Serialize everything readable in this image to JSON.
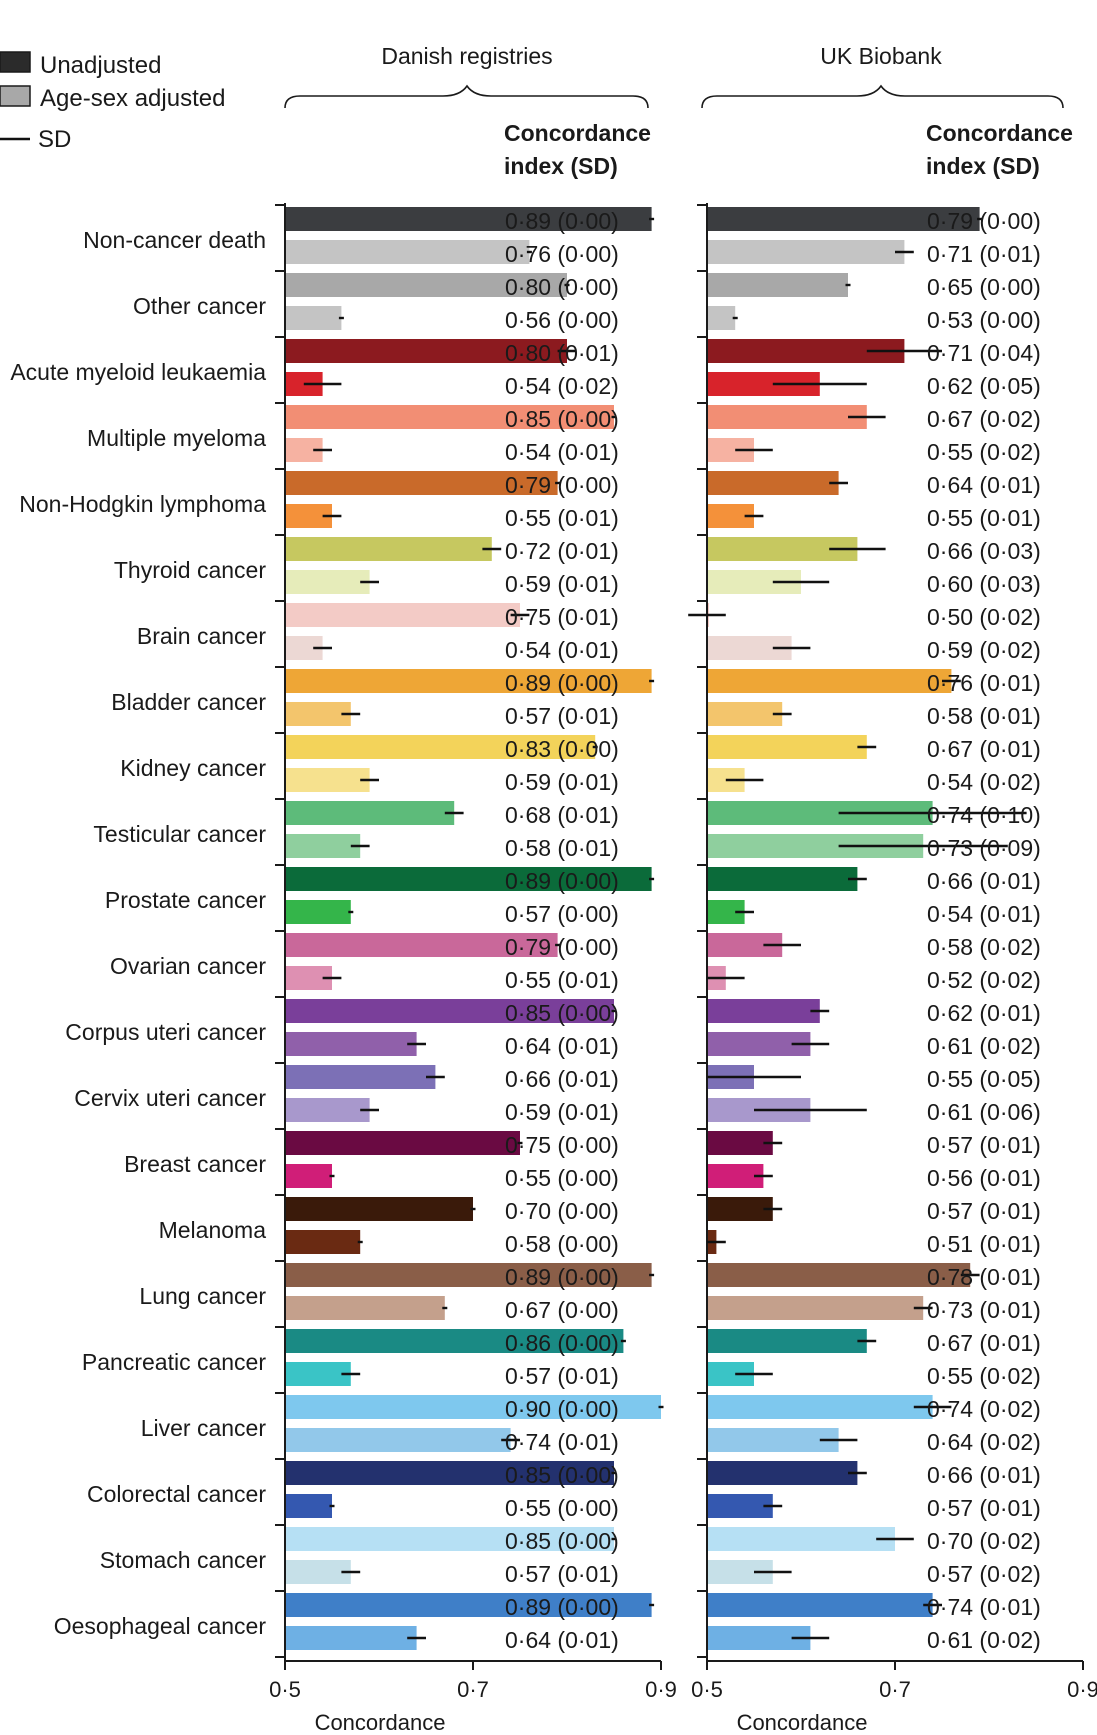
{
  "chart_data": {
    "type": "bar",
    "orientation": "horizontal",
    "legend": [
      {
        "label": "Unadjusted",
        "kind": "swatch",
        "color": "#2b2b2b"
      },
      {
        "label": "Age-sex adjusted",
        "kind": "swatch",
        "color": "#a8a8a8"
      },
      {
        "label": "SD",
        "kind": "line",
        "color": "#111111"
      }
    ],
    "categories": [
      "Non-cancer death",
      "Other cancer",
      "Acute myeloid leukaemia",
      "Multiple myeloma",
      "Non-Hodgkin lymphoma",
      "Thyroid cancer",
      "Brain cancer",
      "Bladder cancer",
      "Kidney cancer",
      "Testicular cancer",
      "Prostate cancer",
      "Ovarian cancer",
      "Corpus uteri cancer",
      "Cervix uteri cancer",
      "Breast cancer",
      "Melanoma",
      "Lung cancer",
      "Pancreatic cancer",
      "Liver cancer",
      "Colorectal cancer",
      "Stomach cancer",
      "Oesophageal cancer"
    ],
    "colors": {
      "unadjusted": [
        "#3b3d40",
        "#a8a8a8",
        "#8c1a1f",
        "#f28e74",
        "#c96a2a",
        "#c6c860",
        "#f3cbc6",
        "#eea636",
        "#f3d35a",
        "#5dbb7a",
        "#0b6b3a",
        "#c9689a",
        "#7a3f9a",
        "#7c70b6",
        "#6a0a42",
        "#3a1a0a",
        "#8a5e48",
        "#1a8a84",
        "#7ec8ee",
        "#23316e",
        "#b6e0f4",
        "#3f7fc8"
      ],
      "adjusted": [
        "#c4c4c4",
        "#c4c4c4",
        "#d8232b",
        "#f6b2a2",
        "#f4913a",
        "#e6ecba",
        "#ecd8d4",
        "#f3c56c",
        "#f6e18e",
        "#8fcf9e",
        "#34b54a",
        "#de90b2",
        "#9060aa",
        "#a898cc",
        "#d01e78",
        "#6a2a12",
        "#c4a08c",
        "#3ac4c6",
        "#92c8ea",
        "#3458b0",
        "#c6e0e8",
        "#6eb0e4"
      ]
    },
    "xlim": [
      0.5,
      0.9
    ],
    "xticks": [
      "0·5",
      "0·7",
      "0·9"
    ],
    "xtick_values": [
      0.5,
      0.7,
      0.9
    ],
    "xlabel": "Concordance",
    "column_header": [
      "Concordance",
      "index (SD)"
    ],
    "panels": [
      {
        "title": "Danish registries",
        "series": [
          {
            "name": "Unadjusted",
            "values": [
              0.89,
              0.8,
              0.8,
              0.85,
              0.79,
              0.72,
              0.75,
              0.89,
              0.83,
              0.68,
              0.89,
              0.79,
              0.85,
              0.66,
              0.75,
              0.7,
              0.89,
              0.86,
              0.9,
              0.85,
              0.85,
              0.89
            ],
            "sd": [
              0.0,
              0.0,
              0.01,
              0.0,
              0.0,
              0.01,
              0.01,
              0.0,
              0.0,
              0.01,
              0.0,
              0.0,
              0.0,
              0.01,
              0.0,
              0.0,
              0.0,
              0.0,
              0.0,
              0.0,
              0.0,
              0.0
            ],
            "labels": [
              "0·89 (0·00)",
              "0·80 (0·00)",
              "0·80 (0·01)",
              "0·85 (0·00)",
              "0·79 (0·00)",
              "0·72 (0·01)",
              "0·75 (0·01)",
              "0·89 (0·00)",
              "0·83 (0·00)",
              "0·68 (0·01)",
              "0·89 (0·00)",
              "0·79 (0·00)",
              "0·85 (0·00)",
              "0·66 (0·01)",
              "0·75 (0·00)",
              "0·70 (0·00)",
              "0·89 (0·00)",
              "0·86 (0·00)",
              "0·90 (0·00)",
              "0·85 (0·00)",
              "0·85 (0·00)",
              "0·89 (0·00)"
            ]
          },
          {
            "name": "Age-sex adjusted",
            "values": [
              0.76,
              0.56,
              0.54,
              0.54,
              0.55,
              0.59,
              0.54,
              0.57,
              0.59,
              0.58,
              0.57,
              0.55,
              0.64,
              0.59,
              0.55,
              0.58,
              0.67,
              0.57,
              0.74,
              0.55,
              0.57,
              0.64
            ],
            "sd": [
              0.0,
              0.0,
              0.02,
              0.01,
              0.01,
              0.01,
              0.01,
              0.01,
              0.01,
              0.01,
              0.0,
              0.01,
              0.01,
              0.01,
              0.0,
              0.0,
              0.0,
              0.01,
              0.01,
              0.0,
              0.01,
              0.01
            ],
            "labels": [
              "0·76 (0·00)",
              "0·56 (0·00)",
              "0·54 (0·02)",
              "0·54 (0·01)",
              "0·55 (0·01)",
              "0·59 (0·01)",
              "0·54 (0·01)",
              "0·57 (0·01)",
              "0·59 (0·01)",
              "0·58 (0·01)",
              "0·57 (0·00)",
              "0·55 (0·01)",
              "0·64 (0·01)",
              "0·59 (0·01)",
              "0·55 (0·00)",
              "0·58 (0·00)",
              "0·67 (0·00)",
              "0·57 (0·01)",
              "0·74 (0·01)",
              "0·55 (0·00)",
              "0·57 (0·01)",
              "0·64 (0·01)"
            ]
          }
        ]
      },
      {
        "title": "UK Biobank",
        "series": [
          {
            "name": "Unadjusted",
            "values": [
              0.79,
              0.65,
              0.71,
              0.67,
              0.64,
              0.66,
              0.5,
              0.76,
              0.67,
              0.74,
              0.66,
              0.58,
              0.62,
              0.55,
              0.57,
              0.57,
              0.78,
              0.67,
              0.74,
              0.66,
              0.7,
              0.74
            ],
            "sd": [
              0.0,
              0.0,
              0.04,
              0.02,
              0.01,
              0.03,
              0.02,
              0.01,
              0.01,
              0.1,
              0.01,
              0.02,
              0.01,
              0.05,
              0.01,
              0.01,
              0.01,
              0.01,
              0.02,
              0.01,
              0.02,
              0.01
            ],
            "labels": [
              "0·79 (0·00)",
              "0·65 (0·00)",
              "0·71 (0·04)",
              "0·67 (0·02)",
              "0·64 (0·01)",
              "0·66 (0·03)",
              "0·50 (0·02)",
              "0·76 (0·01)",
              "0·67 (0·01)",
              "0·74 (0·10)",
              "0·66 (0·01)",
              "0·58 (0·02)",
              "0·62 (0·01)",
              "0·55 (0·05)",
              "0·57 (0·01)",
              "0·57 (0·01)",
              "0·78 (0·01)",
              "0·67 (0·01)",
              "0·74 (0·02)",
              "0·66 (0·01)",
              "0·70 (0·02)",
              "0·74 (0·01)"
            ]
          },
          {
            "name": "Age-sex adjusted",
            "values": [
              0.71,
              0.53,
              0.62,
              0.55,
              0.55,
              0.6,
              0.59,
              0.58,
              0.54,
              0.73,
              0.54,
              0.52,
              0.61,
              0.61,
              0.56,
              0.51,
              0.73,
              0.55,
              0.64,
              0.57,
              0.57,
              0.61
            ],
            "sd": [
              0.01,
              0.0,
              0.05,
              0.02,
              0.01,
              0.03,
              0.02,
              0.01,
              0.02,
              0.09,
              0.01,
              0.02,
              0.02,
              0.06,
              0.01,
              0.01,
              0.01,
              0.02,
              0.02,
              0.01,
              0.02,
              0.02
            ],
            "labels": [
              "0·71 (0·01)",
              "0·53 (0·00)",
              "0·62 (0·05)",
              "0·55 (0·02)",
              "0·55 (0·01)",
              "0·60 (0·03)",
              "0·59 (0·02)",
              "0·58 (0·01)",
              "0·54 (0·02)",
              "0·73 (0·09)",
              "0·54 (0·01)",
              "0·52 (0·02)",
              "0·61 (0·02)",
              "0·61 (0·06)",
              "0·56 (0·01)",
              "0·51 (0·01)",
              "0·73 (0·01)",
              "0·55 (0·02)",
              "0·64 (0·02)",
              "0·57 (0·01)",
              "0·57 (0·02)",
              "0·61 (0·02)"
            ]
          }
        ]
      }
    ]
  }
}
